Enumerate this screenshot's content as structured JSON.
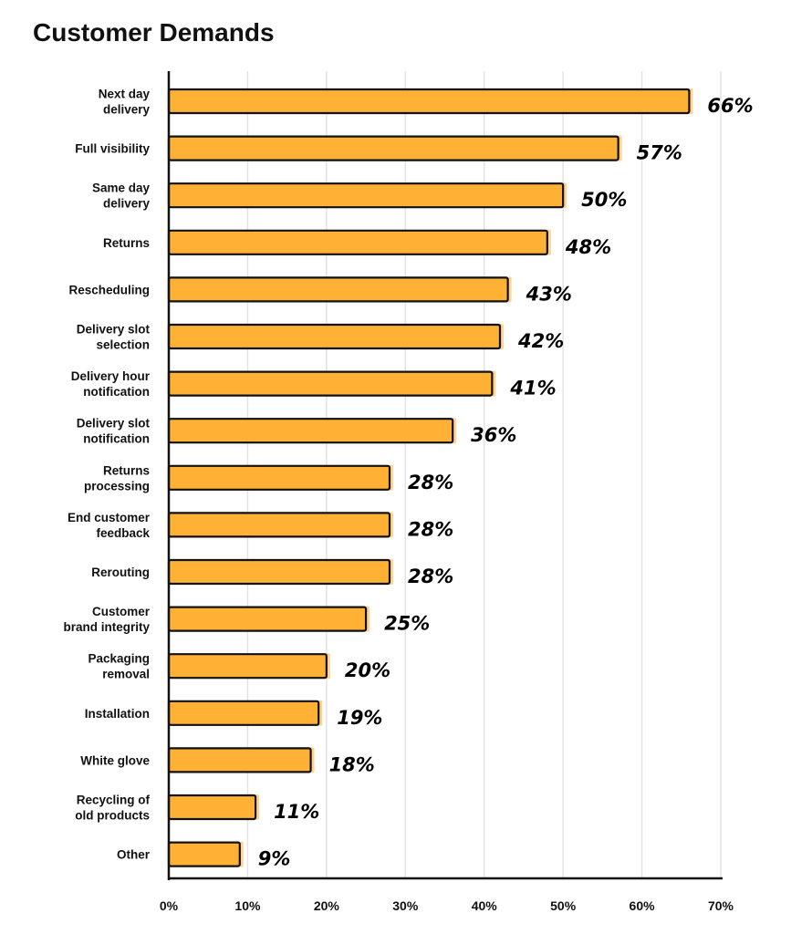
{
  "title": "Customer Demands",
  "colors": {
    "bar_fill": "#FFB136",
    "bar_stroke": "#111111",
    "grid": "#e4e4e4",
    "axis": "#111111"
  },
  "chart_data": {
    "type": "bar",
    "orientation": "horizontal",
    "title": "Customer Demands",
    "xlabel": "",
    "ylabel": "",
    "xlim": [
      0,
      70
    ],
    "grid": true,
    "x_ticks": [
      0,
      10,
      20,
      30,
      40,
      50,
      60,
      70
    ],
    "x_tick_labels": [
      "0%",
      "10%",
      "20%",
      "30%",
      "40%",
      "50%",
      "60%",
      "70%"
    ],
    "categories": [
      [
        "Next day",
        "delivery"
      ],
      [
        "Full visibility"
      ],
      [
        "Same day",
        "delivery"
      ],
      [
        "Returns"
      ],
      [
        "Rescheduling"
      ],
      [
        "Delivery slot",
        "selection"
      ],
      [
        "Delivery hour",
        "notification"
      ],
      [
        "Delivery slot",
        "notification"
      ],
      [
        "Returns",
        "processing"
      ],
      [
        "End customer",
        "feedback"
      ],
      [
        "Rerouting"
      ],
      [
        "Customer",
        "brand integrity"
      ],
      [
        "Packaging",
        "removal"
      ],
      [
        "Installation"
      ],
      [
        "White glove"
      ],
      [
        "Recycling of",
        "old products"
      ],
      [
        "Other"
      ]
    ],
    "values": [
      66,
      57,
      50,
      48,
      43,
      42,
      41,
      36,
      28,
      28,
      28,
      25,
      20,
      19,
      18,
      11,
      9
    ],
    "value_labels": [
      "66%",
      "57%",
      "50%",
      "48%",
      "43%",
      "42%",
      "41%",
      "36%",
      "28%",
      "28%",
      "28%",
      "25%",
      "20%",
      "19%",
      "18%",
      "11%",
      "9%"
    ]
  }
}
